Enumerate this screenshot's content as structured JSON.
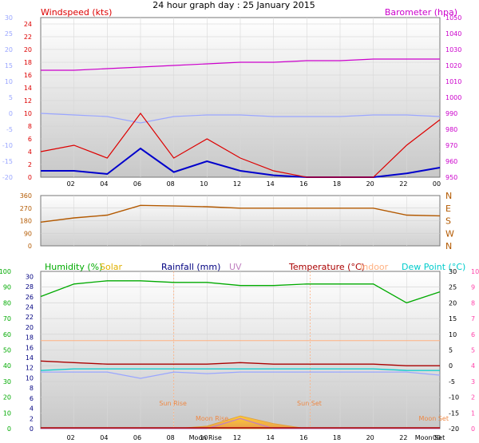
{
  "title": "24 hour graph day : 25 January 2015",
  "hours": [
    "02",
    "04",
    "06",
    "08",
    "10",
    "12",
    "14",
    "16",
    "18",
    "20",
    "22",
    "00"
  ],
  "colors": {
    "wind": "#dd0000",
    "avg_wind": "#0000cc",
    "barometer": "#cc00cc",
    "wind_chill": "#9aa6ff",
    "direction": "#b35900",
    "humidity": "#00aa00",
    "solar": "#e0b000",
    "rainfall": "#000080",
    "uv": "#c080c0",
    "temperature": "#aa0000",
    "indoor": "#ffb080",
    "dewpoint": "#00cccc",
    "pink_axis": "#ff44aa"
  },
  "chart_data": [
    {
      "type": "line",
      "panel": "wind_barometer",
      "left_title": "Windspeed (kts)",
      "right_title": "Barometer (hpa)",
      "left_axis_red": [
        0,
        2,
        4,
        6,
        8,
        10,
        12,
        14,
        16,
        18,
        20,
        22,
        24
      ],
      "left_axis_blue": [
        -20,
        -15,
        -10,
        -5,
        0,
        5,
        10,
        15,
        20,
        25,
        30
      ],
      "right_axis": [
        950,
        960,
        970,
        980,
        990,
        1000,
        1010,
        1020,
        1030,
        1040,
        1050
      ],
      "x_hours": [
        0,
        2,
        4,
        6,
        8,
        10,
        12,
        14,
        16,
        18,
        20,
        22,
        24
      ],
      "series": [
        {
          "key": "barometer",
          "axis": "right",
          "values": [
            1017,
            1017,
            1018,
            1019,
            1020,
            1021,
            1022,
            1022,
            1023,
            1023,
            1024,
            1024,
            1024
          ]
        },
        {
          "key": "wind_chill",
          "axis": "left_blue",
          "values": [
            0,
            -0.5,
            -1,
            -3,
            -1,
            -0.5,
            -0.5,
            -1,
            -1,
            -1,
            -0.5,
            -0.5,
            -1
          ]
        },
        {
          "key": "avg_wind",
          "axis": "left_red",
          "values": [
            1,
            1,
            0.5,
            4.5,
            0.8,
            2.5,
            1,
            0.3,
            0,
            0,
            0,
            0.6,
            1.5
          ]
        },
        {
          "key": "wind",
          "axis": "left_red",
          "values": [
            4,
            5,
            3,
            10,
            3,
            6,
            3,
            1,
            0,
            0,
            0,
            5,
            9
          ]
        }
      ]
    },
    {
      "type": "line",
      "panel": "wind_direction",
      "left_axis": [
        0,
        90,
        180,
        270,
        360
      ],
      "right_labels": [
        "N",
        "W",
        "S",
        "E",
        "N"
      ],
      "x_hours": [
        0,
        2,
        4,
        6,
        8,
        10,
        12,
        14,
        16,
        18,
        20,
        22,
        24
      ],
      "series": [
        {
          "key": "direction",
          "values": [
            170,
            200,
            220,
            290,
            285,
            280,
            270,
            270,
            270,
            270,
            270,
            220,
            215
          ]
        }
      ]
    },
    {
      "type": "line",
      "panel": "temp_hum",
      "labels": {
        "humidity": "Humidity  (%)",
        "solar": "Solar",
        "rainfall": "Rainfall (mm)",
        "uv": "UV",
        "temperature": "Temperature (°C)",
        "indoor": "Indoor",
        "dewpoint": "Dew Point (°C)"
      },
      "axis_humidity": [
        0,
        10,
        20,
        30,
        40,
        50,
        60,
        70,
        80,
        90,
        100
      ],
      "axis_rainfall": [
        0,
        2,
        4,
        6,
        8,
        10,
        12,
        14,
        16,
        18,
        20,
        22,
        24,
        26,
        28,
        30
      ],
      "axis_temperature": [
        -20,
        -15,
        -10,
        -5,
        0,
        5,
        10,
        15,
        20,
        25,
        30
      ],
      "axis_uv": [
        0,
        1,
        2,
        3,
        4,
        5,
        6,
        7,
        8,
        9,
        10
      ],
      "annotations": [
        "Sun Rise",
        "Sun Set",
        "Moon Rise",
        "Moon Set",
        "Moon Rise",
        "Moon Set"
      ],
      "x_hours": [
        0,
        2,
        4,
        6,
        8,
        10,
        12,
        14,
        16,
        18,
        20,
        22,
        24
      ],
      "series": [
        {
          "key": "humidity",
          "axis": "humidity",
          "values": [
            84,
            92,
            94,
            94,
            93,
            93,
            91,
            91,
            92,
            92,
            92,
            80,
            87
          ]
        },
        {
          "key": "temperature",
          "axis": "temperature",
          "values": [
            1.5,
            1,
            0.5,
            0.5,
            0.5,
            0.5,
            1,
            0.5,
            0.5,
            0.5,
            0.5,
            0,
            0
          ]
        },
        {
          "key": "indoor",
          "axis": "temperature",
          "values": [
            8,
            8,
            8,
            8,
            8,
            8,
            8,
            8,
            8,
            8,
            8,
            8,
            8
          ]
        },
        {
          "key": "dewpoint",
          "axis": "temperature",
          "values": [
            -1.5,
            -1,
            -1,
            -1,
            -1,
            -1,
            -1,
            -1,
            -1,
            -1,
            -1,
            -1.5,
            -1.5
          ]
        },
        {
          "key": "wind_chill",
          "axis": "temperature",
          "values": [
            -2,
            -2,
            -2,
            -4,
            -2,
            -2.5,
            -2,
            -2,
            -2,
            -2,
            -2,
            -2,
            -3
          ]
        },
        {
          "key": "solar",
          "axis": "rainfall",
          "values": [
            0,
            0,
            0,
            0,
            0,
            0.5,
            2.5,
            1,
            0,
            0,
            0,
            0,
            0
          ]
        },
        {
          "key": "uv",
          "axis": "rainfall",
          "values": [
            0,
            0,
            0,
            0,
            0,
            0,
            2,
            0,
            0,
            0,
            0,
            0,
            0
          ]
        }
      ]
    }
  ]
}
